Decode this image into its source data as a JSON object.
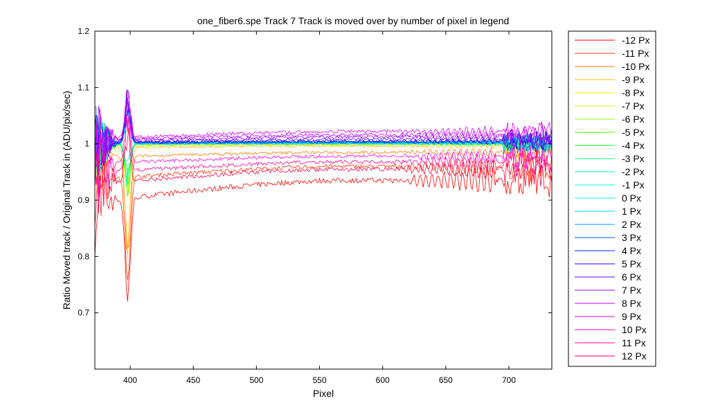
{
  "chart_data": {
    "type": "line",
    "title": "one_fiber6.spe   Track 7     Track is moved over by number of pixel in legend",
    "xlabel": "Pixel",
    "ylabel": "Ratio Moved track / Original Track in (ADU/pix/sec)",
    "xlim": [
      372,
      734
    ],
    "ylim": [
      0.6,
      1.2
    ],
    "xticks": [
      400,
      450,
      500,
      550,
      600,
      650,
      700
    ],
    "yticks": [
      0.7,
      0.8,
      0.9,
      1,
      1.1,
      1.2
    ],
    "ytick_labels": [
      "0.7",
      "0.8",
      "0.9",
      "1",
      "1.1",
      "1.2"
    ],
    "grid": false,
    "legend_position": "outside-right",
    "series": [
      {
        "name": "-12 Px",
        "color": "#ff0000",
        "plateau": 0.935
      },
      {
        "name": "-11 Px",
        "color": "#ff3300",
        "plateau": 0.96
      },
      {
        "name": "-10 Px",
        "color": "#ff7a00",
        "plateau": 0.985
      },
      {
        "name": "-9 Px",
        "color": "#ffbb00",
        "plateau": 0.996
      },
      {
        "name": "-8 Px",
        "color": "#e8e800",
        "plateau": 0.998
      },
      {
        "name": "-7 Px",
        "color": "#ccff00",
        "plateau": 0.999
      },
      {
        "name": "-6 Px",
        "color": "#88ff00",
        "plateau": 1.0
      },
      {
        "name": "-5 Px",
        "color": "#44ff00",
        "plateau": 1.001
      },
      {
        "name": "-4 Px",
        "color": "#00ff22",
        "plateau": 1.001
      },
      {
        "name": "-3 Px",
        "color": "#00ff66",
        "plateau": 1.002
      },
      {
        "name": "-2 Px",
        "color": "#00ffaa",
        "plateau": 1.002
      },
      {
        "name": "-1 Px",
        "color": "#00ffdd",
        "plateau": 1.002
      },
      {
        "name": "0 Px",
        "color": "#00ffff",
        "plateau": 1.0
      },
      {
        "name": "1 Px",
        "color": "#00ccff",
        "plateau": 1.001
      },
      {
        "name": "2 Px",
        "color": "#0099ff",
        "plateau": 1.002
      },
      {
        "name": "3 Px",
        "color": "#0055ff",
        "plateau": 1.003
      },
      {
        "name": "4 Px",
        "color": "#0022ff",
        "plateau": 1.004
      },
      {
        "name": "5 Px",
        "color": "#2200ff",
        "plateau": 1.005
      },
      {
        "name": "6 Px",
        "color": "#6600ff",
        "plateau": 1.008
      },
      {
        "name": "7 Px",
        "color": "#9900ff",
        "plateau": 1.012
      },
      {
        "name": "8 Px",
        "color": "#bb00ff",
        "plateau": 1.016
      },
      {
        "name": "9 Px",
        "color": "#dd00ff",
        "plateau": 1.022
      },
      {
        "name": "10 Px",
        "color": "#ff00dd",
        "plateau": 0.978
      },
      {
        "name": "11 Px",
        "color": "#ff0099",
        "plateau": 0.968
      },
      {
        "name": "12 Px",
        "color": "#ff0044",
        "plateau": 0.955
      }
    ]
  }
}
